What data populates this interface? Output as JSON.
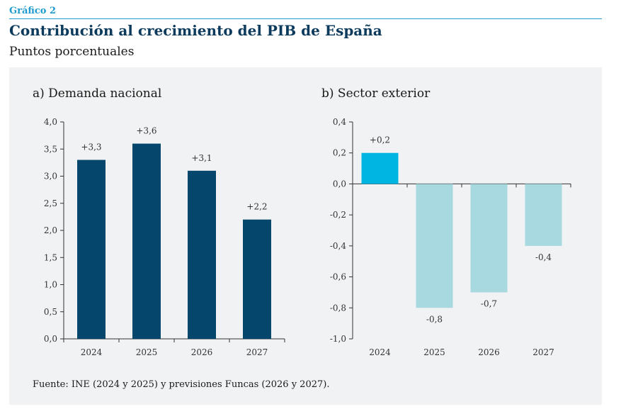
{
  "header": {
    "tag": "Gráfico 2",
    "title": "Contribución al crecimiento del PIB de España",
    "subtitle": "Puntos porcentuales"
  },
  "colors": {
    "dark_bar": "#04466c",
    "positive_bar": "#00b5e2",
    "negative_bar": "#a8d8e0",
    "accent": "#1f9bcf",
    "panel_bg": "#f1f2f3"
  },
  "chart_data": [
    {
      "type": "bar",
      "title": "a) Demanda nacional",
      "categories": [
        "2024",
        "2025",
        "2026",
        "2027"
      ],
      "values": [
        3.3,
        3.6,
        3.1,
        2.2
      ],
      "data_labels": [
        "+3,3",
        "+3,6",
        "+3,1",
        "+2,2"
      ],
      "ylim": [
        0,
        4
      ],
      "yticks": [
        0,
        0.5,
        1,
        1.5,
        2,
        2.5,
        3,
        3.5,
        4
      ],
      "ytick_labels": [
        "0,0",
        "0,5",
        "1,0",
        "1,5",
        "2,0",
        "2,5",
        "3,0",
        "3,5",
        "4,0"
      ],
      "xlabel": "",
      "ylabel": "",
      "grid": false
    },
    {
      "type": "bar",
      "title": "b) Sector exterior",
      "categories": [
        "2024",
        "2025",
        "2026",
        "2027"
      ],
      "values": [
        0.2,
        -0.8,
        -0.7,
        -0.4
      ],
      "data_labels": [
        "+0,2",
        "-0,8",
        "-0,7",
        "-0,4"
      ],
      "ylim": [
        -1,
        0.4
      ],
      "yticks": [
        0.4,
        0.2,
        0,
        -0.2,
        -0.4,
        -0.6,
        -0.8,
        -1
      ],
      "ytick_labels": [
        "0,4",
        "0,2",
        "0,0",
        "-0,2",
        "-0,4",
        "-0,6",
        "-0,8",
        "-1,0"
      ],
      "xlabel": "",
      "ylabel": "",
      "grid": false
    }
  ],
  "footer": {
    "source": "Fuente: INE (2024 y 2025) y previsiones Funcas (2026 y 2027)."
  }
}
